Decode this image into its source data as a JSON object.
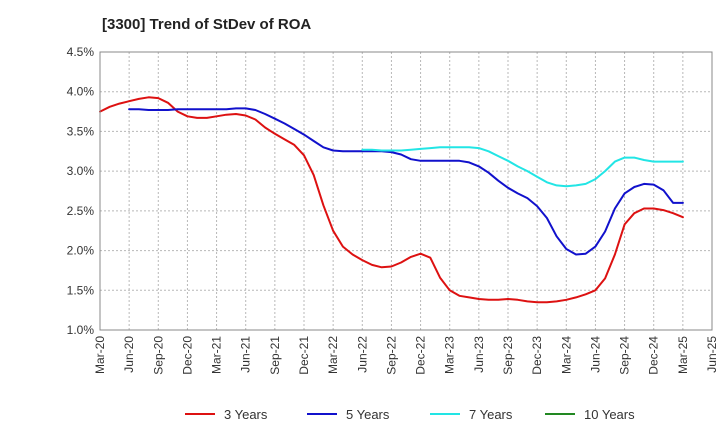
{
  "chart_data": {
    "type": "line",
    "title": "[3300]  Trend of StDev of ROA",
    "xlabel": "",
    "ylabel": "",
    "ylim": [
      1.0,
      4.5
    ],
    "yticks": [
      "4.5%",
      "4.0%",
      "3.5%",
      "3.0%",
      "2.5%",
      "2.0%",
      "1.5%",
      "1.0%"
    ],
    "ytick_values": [
      4.5,
      4.0,
      3.5,
      3.0,
      2.5,
      2.0,
      1.5,
      1.0
    ],
    "xticks": [
      "Mar-20",
      "Jun-20",
      "Sep-20",
      "Dec-20",
      "Mar-21",
      "Jun-21",
      "Sep-21",
      "Dec-21",
      "Mar-22",
      "Jun-22",
      "Sep-22",
      "Dec-22",
      "Mar-23",
      "Jun-23",
      "Sep-23",
      "Dec-23",
      "Mar-24",
      "Jun-24",
      "Sep-24",
      "Dec-24",
      "Mar-25",
      "Jun-25"
    ],
    "grid": true,
    "legend_position": "bottom",
    "series": [
      {
        "name": "3 Years",
        "color": "#dd1111",
        "x": [
          0,
          1,
          2,
          3,
          4,
          5,
          6,
          7,
          8,
          9,
          10,
          11,
          12,
          13,
          14,
          15,
          16,
          17,
          18,
          19,
          20,
          21,
          22,
          23,
          24,
          25,
          26,
          27,
          28,
          29,
          30,
          31,
          32,
          33,
          34,
          35,
          36,
          37,
          38,
          39,
          40,
          41,
          42,
          43,
          44,
          45,
          46,
          47,
          48,
          49,
          50,
          51,
          52,
          53,
          54,
          55,
          56,
          57,
          58,
          59,
          60
        ],
        "values": [
          3.75,
          3.81,
          3.85,
          3.88,
          3.91,
          3.93,
          3.92,
          3.86,
          3.75,
          3.69,
          3.67,
          3.67,
          3.69,
          3.71,
          3.72,
          3.7,
          3.65,
          3.55,
          3.47,
          3.4,
          3.33,
          3.2,
          2.95,
          2.57,
          2.25,
          2.05,
          1.95,
          1.88,
          1.82,
          1.79,
          1.8,
          1.85,
          1.92,
          1.96,
          1.91,
          1.66,
          1.5,
          1.43,
          1.41,
          1.39,
          1.38,
          1.38,
          1.39,
          1.38,
          1.36,
          1.35,
          1.35,
          1.36,
          1.38,
          1.41,
          1.45,
          1.5,
          1.65,
          1.95,
          2.33,
          2.47,
          2.53,
          2.53,
          2.51,
          2.47,
          2.42
        ]
      },
      {
        "name": "5 Years",
        "color": "#1111cc",
        "x": [
          3,
          4,
          5,
          6,
          7,
          8,
          9,
          10,
          11,
          12,
          13,
          14,
          15,
          16,
          17,
          18,
          19,
          20,
          21,
          22,
          23,
          24,
          25,
          26,
          27,
          28,
          29,
          30,
          31,
          32,
          33,
          34,
          35,
          36,
          37,
          38,
          39,
          40,
          41,
          42,
          43,
          44,
          45,
          46,
          47,
          48,
          49,
          50,
          51,
          52,
          53,
          54,
          55,
          56,
          57,
          58,
          59,
          60
        ],
        "values": [
          3.78,
          3.78,
          3.77,
          3.77,
          3.77,
          3.78,
          3.78,
          3.78,
          3.78,
          3.78,
          3.78,
          3.79,
          3.79,
          3.77,
          3.72,
          3.66,
          3.6,
          3.53,
          3.46,
          3.38,
          3.3,
          3.26,
          3.25,
          3.25,
          3.25,
          3.25,
          3.25,
          3.24,
          3.21,
          3.15,
          3.13,
          3.13,
          3.13,
          3.13,
          3.13,
          3.11,
          3.06,
          2.98,
          2.88,
          2.79,
          2.72,
          2.66,
          2.56,
          2.41,
          2.18,
          2.02,
          1.95,
          1.96,
          2.05,
          2.24,
          2.53,
          2.72,
          2.8,
          2.84,
          2.83,
          2.76,
          2.6,
          2.6
        ]
      },
      {
        "name": "7 Years",
        "color": "#22e5e5",
        "x": [
          27,
          28,
          29,
          30,
          31,
          32,
          33,
          34,
          35,
          36,
          37,
          38,
          39,
          40,
          41,
          42,
          43,
          44,
          45,
          46,
          47,
          48,
          49,
          50,
          51,
          52,
          53,
          54,
          55,
          56,
          57,
          58,
          59,
          60
        ],
        "values": [
          3.27,
          3.27,
          3.26,
          3.26,
          3.26,
          3.27,
          3.28,
          3.29,
          3.3,
          3.3,
          3.3,
          3.3,
          3.29,
          3.25,
          3.19,
          3.13,
          3.06,
          3.0,
          2.93,
          2.86,
          2.82,
          2.81,
          2.82,
          2.84,
          2.9,
          3.0,
          3.12,
          3.17,
          3.17,
          3.14,
          3.12,
          3.12,
          3.12,
          3.12
        ]
      },
      {
        "name": "10 Years",
        "color": "#228822",
        "x": [],
        "values": []
      }
    ]
  }
}
